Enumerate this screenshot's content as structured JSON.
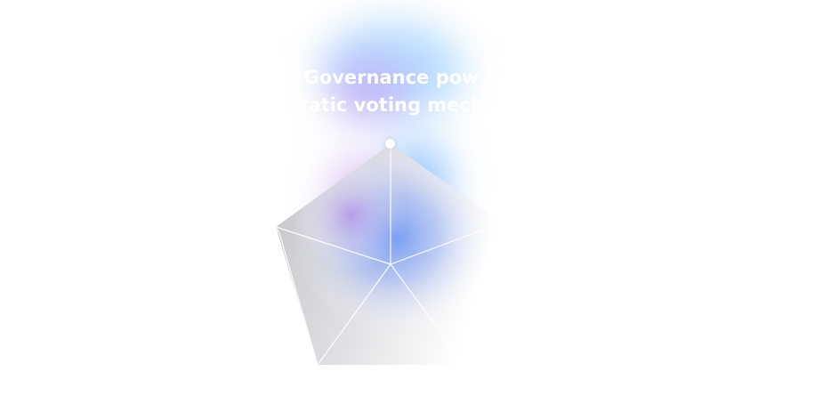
{
  "caption": {
    "line1": "Governance pow",
    "line2": "ratic voting mech"
  },
  "colors": {
    "background": "#ffffff",
    "glow_blue": "#5aa8f5",
    "glow_purple": "#b48be8",
    "glow_indigo": "#6f86f0",
    "pentagon_gray_dark": "#c5c6cb",
    "pentagon_gray_light": "#eeeef1",
    "edge_white": "#ffffff"
  },
  "icons": {
    "vertex_marker": "circle-dot-icon"
  }
}
